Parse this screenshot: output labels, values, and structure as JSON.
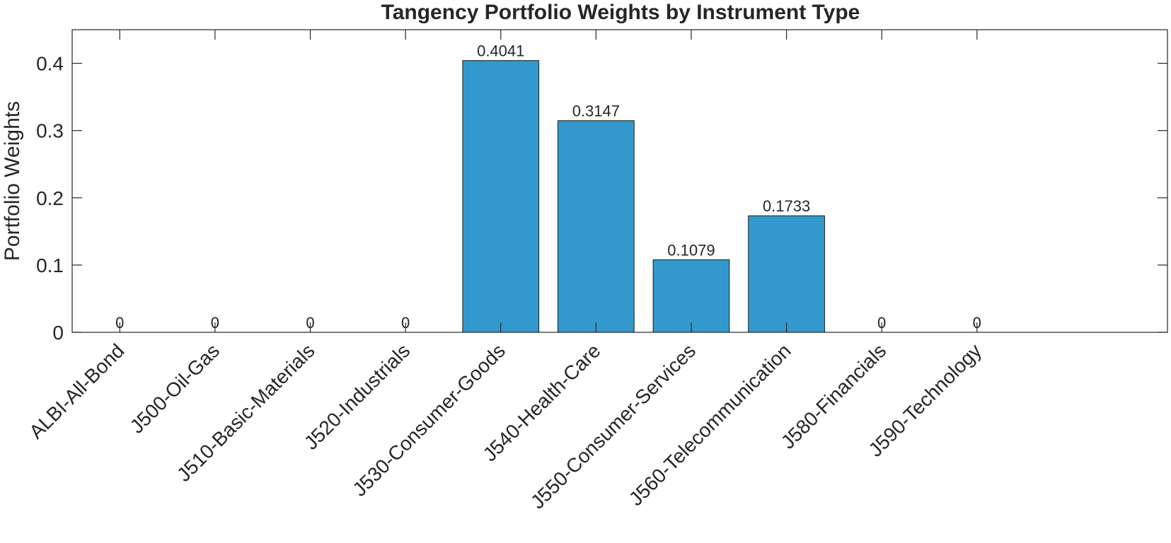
{
  "chart_data": {
    "type": "bar",
    "title": "Tangency Portfolio Weights by Instrument Type",
    "xlabel": "",
    "ylabel": "Portfolio Weights",
    "categories": [
      "ALBI-All-Bond",
      "J500-Oil-Gas",
      "J510-Basic-Materials",
      "J520-Industrials",
      "J530-Consumer-Goods",
      "J540-Health-Care",
      "J550-Consumer-Services",
      "J560-Telecommunication",
      "J580-Financials",
      "J590-Technology"
    ],
    "values": [
      0,
      0,
      0,
      0,
      0.4041,
      0.3147,
      0.1079,
      0.1733,
      0,
      0
    ],
    "data_labels": [
      "0",
      "0",
      "0",
      "0",
      "0.4041",
      "0.3147",
      "0.1079",
      "0.1733",
      "0",
      "0"
    ],
    "ylim": [
      0,
      0.45
    ],
    "yticks": [
      0,
      0.1,
      0.2,
      0.3,
      0.4
    ],
    "ytick_labels": [
      "0",
      "0.1",
      "0.2",
      "0.3",
      "0.4"
    ],
    "grid": false,
    "bar_color": "#3399cc",
    "bar_edge_color": "#1a1a1a",
    "axis_color": "#262626"
  }
}
